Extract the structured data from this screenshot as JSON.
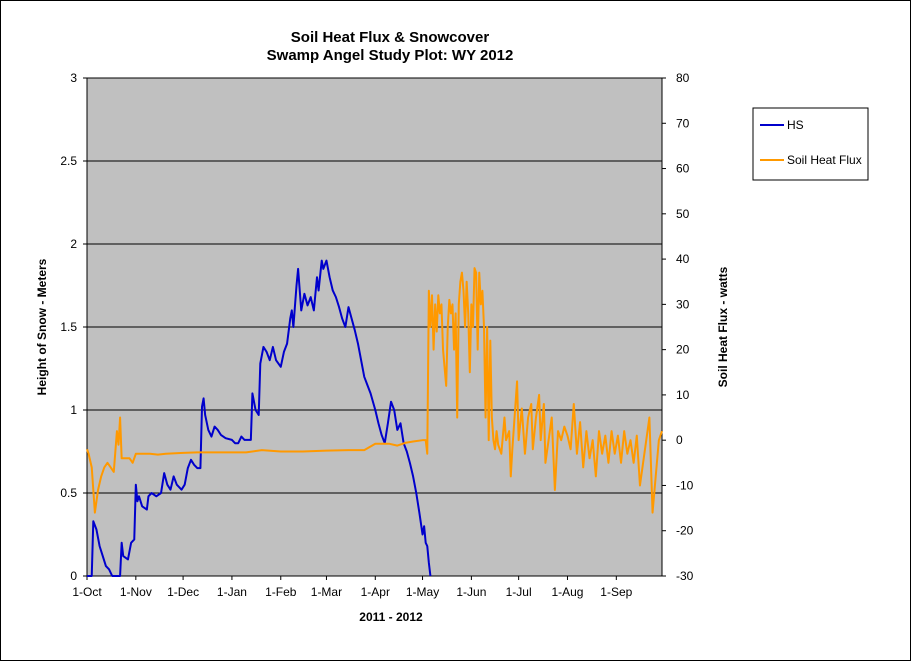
{
  "chart_data": {
    "type": "line",
    "title": [
      "Soil Heat Flux & Snowcover",
      "Swamp Angel Study Plot: WY 2012"
    ],
    "xlabel": "2011 - 2012",
    "ylabel_left": "Height of Snow - Meters",
    "ylabel_right": "Soil Heat Flux - watts",
    "x_tick_labels": [
      "1-Oct",
      "1-Nov",
      "1-Dec",
      "1-Jan",
      "1-Feb",
      "1-Mar",
      "1-Apr",
      "1-May",
      "1-Jun",
      "1-Jul",
      "1-Aug",
      "1-Sep"
    ],
    "x_tick_dates": [
      "2011-10-01",
      "2011-11-01",
      "2011-12-01",
      "2012-01-01",
      "2012-02-01",
      "2012-03-01",
      "2012-04-01",
      "2012-05-01",
      "2012-06-01",
      "2012-07-01",
      "2012-08-01",
      "2012-09-01"
    ],
    "x_range": [
      "2011-10-01",
      "2012-09-30"
    ],
    "ylim_left": [
      0,
      3
    ],
    "yticks_left": [
      "0",
      "0.5",
      "1",
      "1.5",
      "2",
      "2.5",
      "3"
    ],
    "ylim_right": [
      -30,
      80
    ],
    "yticks_right": [
      "-30",
      "-20",
      "-10",
      "0",
      "10",
      "20",
      "30",
      "40",
      "50",
      "60",
      "70",
      "80"
    ],
    "grid": "horizontal",
    "plot_background": "#c0c0c0",
    "legend_position": "right",
    "series": [
      {
        "name": "HS",
        "axis": "left",
        "color": "#0000cc",
        "points": [
          [
            "2011-10-01",
            0.0
          ],
          [
            "2011-10-04",
            0.0
          ],
          [
            "2011-10-05",
            0.33
          ],
          [
            "2011-10-07",
            0.28
          ],
          [
            "2011-10-09",
            0.18
          ],
          [
            "2011-10-11",
            0.12
          ],
          [
            "2011-10-13",
            0.06
          ],
          [
            "2011-10-15",
            0.04
          ],
          [
            "2011-10-17",
            0.0
          ],
          [
            "2011-10-22",
            0.0
          ],
          [
            "2011-10-23",
            0.2
          ],
          [
            "2011-10-24",
            0.12
          ],
          [
            "2011-10-27",
            0.1
          ],
          [
            "2011-10-29",
            0.2
          ],
          [
            "2011-10-31",
            0.22
          ],
          [
            "2011-11-01",
            0.55
          ],
          [
            "2011-11-02",
            0.45
          ],
          [
            "2011-11-03",
            0.48
          ],
          [
            "2011-11-05",
            0.42
          ],
          [
            "2011-11-08",
            0.4
          ],
          [
            "2011-11-09",
            0.48
          ],
          [
            "2011-11-11",
            0.5
          ],
          [
            "2011-11-14",
            0.48
          ],
          [
            "2011-11-17",
            0.5
          ],
          [
            "2011-11-19",
            0.62
          ],
          [
            "2011-11-21",
            0.55
          ],
          [
            "2011-11-23",
            0.52
          ],
          [
            "2011-11-25",
            0.6
          ],
          [
            "2011-11-27",
            0.55
          ],
          [
            "2011-11-30",
            0.52
          ],
          [
            "2011-12-02",
            0.55
          ],
          [
            "2011-12-04",
            0.65
          ],
          [
            "2011-12-06",
            0.7
          ],
          [
            "2011-12-08",
            0.67
          ],
          [
            "2011-12-10",
            0.65
          ],
          [
            "2011-12-12",
            0.65
          ],
          [
            "2011-12-13",
            1.02
          ],
          [
            "2011-12-14",
            1.07
          ],
          [
            "2011-12-15",
            0.97
          ],
          [
            "2011-12-17",
            0.88
          ],
          [
            "2011-12-19",
            0.84
          ],
          [
            "2011-12-21",
            0.9
          ],
          [
            "2011-12-23",
            0.88
          ],
          [
            "2011-12-25",
            0.85
          ],
          [
            "2011-12-28",
            0.83
          ],
          [
            "2012-01-01",
            0.82
          ],
          [
            "2012-01-03",
            0.8
          ],
          [
            "2012-01-05",
            0.8
          ],
          [
            "2012-01-07",
            0.84
          ],
          [
            "2012-01-09",
            0.82
          ],
          [
            "2012-01-11",
            0.82
          ],
          [
            "2012-01-13",
            0.82
          ],
          [
            "2012-01-14",
            1.1
          ],
          [
            "2012-01-16",
            1.0
          ],
          [
            "2012-01-18",
            0.97
          ],
          [
            "2012-01-19",
            1.28
          ],
          [
            "2012-01-21",
            1.38
          ],
          [
            "2012-01-23",
            1.35
          ],
          [
            "2012-01-25",
            1.3
          ],
          [
            "2012-01-27",
            1.38
          ],
          [
            "2012-01-29",
            1.3
          ],
          [
            "2012-02-01",
            1.26
          ],
          [
            "2012-02-03",
            1.35
          ],
          [
            "2012-02-05",
            1.4
          ],
          [
            "2012-02-07",
            1.55
          ],
          [
            "2012-02-08",
            1.6
          ],
          [
            "2012-02-09",
            1.5
          ],
          [
            "2012-02-11",
            1.75
          ],
          [
            "2012-02-12",
            1.85
          ],
          [
            "2012-02-14",
            1.6
          ],
          [
            "2012-02-16",
            1.7
          ],
          [
            "2012-02-18",
            1.63
          ],
          [
            "2012-02-20",
            1.68
          ],
          [
            "2012-02-22",
            1.6
          ],
          [
            "2012-02-24",
            1.8
          ],
          [
            "2012-02-25",
            1.72
          ],
          [
            "2012-02-27",
            1.9
          ],
          [
            "2012-02-28",
            1.85
          ],
          [
            "2012-03-01",
            1.9
          ],
          [
            "2012-03-03",
            1.8
          ],
          [
            "2012-03-05",
            1.72
          ],
          [
            "2012-03-07",
            1.68
          ],
          [
            "2012-03-09",
            1.62
          ],
          [
            "2012-03-11",
            1.55
          ],
          [
            "2012-03-13",
            1.5
          ],
          [
            "2012-03-15",
            1.62
          ],
          [
            "2012-03-17",
            1.55
          ],
          [
            "2012-03-19",
            1.48
          ],
          [
            "2012-03-21",
            1.4
          ],
          [
            "2012-03-23",
            1.3
          ],
          [
            "2012-03-25",
            1.2
          ],
          [
            "2012-03-27",
            1.15
          ],
          [
            "2012-03-29",
            1.1
          ],
          [
            "2012-04-01",
            1.0
          ],
          [
            "2012-04-03",
            0.92
          ],
          [
            "2012-04-05",
            0.85
          ],
          [
            "2012-04-07",
            0.8
          ],
          [
            "2012-04-09",
            0.92
          ],
          [
            "2012-04-11",
            1.05
          ],
          [
            "2012-04-13",
            1.0
          ],
          [
            "2012-04-15",
            0.88
          ],
          [
            "2012-04-17",
            0.92
          ],
          [
            "2012-04-19",
            0.8
          ],
          [
            "2012-04-21",
            0.75
          ],
          [
            "2012-04-23",
            0.68
          ],
          [
            "2012-04-25",
            0.6
          ],
          [
            "2012-04-27",
            0.5
          ],
          [
            "2012-04-29",
            0.38
          ],
          [
            "2012-05-01",
            0.25
          ],
          [
            "2012-05-02",
            0.3
          ],
          [
            "2012-05-03",
            0.2
          ],
          [
            "2012-05-04",
            0.18
          ],
          [
            "2012-05-05",
            0.08
          ],
          [
            "2012-05-06",
            0.0
          ]
        ]
      },
      {
        "name": "Soil Heat Flux",
        "axis": "right",
        "color": "#ff9900",
        "points": [
          [
            "2011-10-01",
            -2
          ],
          [
            "2011-10-02",
            -3
          ],
          [
            "2011-10-04",
            -6
          ],
          [
            "2011-10-06",
            -16
          ],
          [
            "2011-10-08",
            -11
          ],
          [
            "2011-10-10",
            -8
          ],
          [
            "2011-10-12",
            -6
          ],
          [
            "2011-10-14",
            -5
          ],
          [
            "2011-10-16",
            -6
          ],
          [
            "2011-10-18",
            -7
          ],
          [
            "2011-10-20",
            2
          ],
          [
            "2011-10-21",
            -1
          ],
          [
            "2011-10-22",
            5
          ],
          [
            "2011-10-23",
            -4
          ],
          [
            "2011-10-25",
            -4
          ],
          [
            "2011-10-28",
            -4
          ],
          [
            "2011-10-30",
            -5
          ],
          [
            "2011-11-01",
            -3
          ],
          [
            "2011-11-05",
            -3
          ],
          [
            "2011-11-10",
            -3
          ],
          [
            "2011-11-15",
            -3.2
          ],
          [
            "2011-11-20",
            -3
          ],
          [
            "2011-12-01",
            -2.8
          ],
          [
            "2011-12-10",
            -2.7
          ],
          [
            "2011-12-20",
            -2.7
          ],
          [
            "2012-01-01",
            -2.7
          ],
          [
            "2012-01-10",
            -2.7
          ],
          [
            "2012-01-20",
            -2.2
          ],
          [
            "2012-02-01",
            -2.5
          ],
          [
            "2012-02-15",
            -2.5
          ],
          [
            "2012-03-01",
            -2.3
          ],
          [
            "2012-03-15",
            -2.2
          ],
          [
            "2012-03-25",
            -2.2
          ],
          [
            "2012-04-01",
            -0.8
          ],
          [
            "2012-04-10",
            -0.8
          ],
          [
            "2012-04-15",
            -1.2
          ],
          [
            "2012-04-20",
            -0.6
          ],
          [
            "2012-04-25",
            -0.3
          ],
          [
            "2012-05-01",
            0
          ],
          [
            "2012-05-03",
            0
          ],
          [
            "2012-05-04",
            -3
          ],
          [
            "2012-05-05",
            33
          ],
          [
            "2012-05-06",
            25
          ],
          [
            "2012-05-07",
            32
          ],
          [
            "2012-05-08",
            20
          ],
          [
            "2012-05-09",
            30
          ],
          [
            "2012-05-10",
            24
          ],
          [
            "2012-05-11",
            32
          ],
          [
            "2012-05-12",
            28
          ],
          [
            "2012-05-13",
            30
          ],
          [
            "2012-05-14",
            20
          ],
          [
            "2012-05-16",
            12
          ],
          [
            "2012-05-17",
            25
          ],
          [
            "2012-05-18",
            31
          ],
          [
            "2012-05-19",
            28
          ],
          [
            "2012-05-20",
            30
          ],
          [
            "2012-05-21",
            20
          ],
          [
            "2012-05-22",
            28
          ],
          [
            "2012-05-23",
            5
          ],
          [
            "2012-05-24",
            30
          ],
          [
            "2012-05-25",
            35
          ],
          [
            "2012-05-26",
            37
          ],
          [
            "2012-05-27",
            33
          ],
          [
            "2012-05-28",
            25
          ],
          [
            "2012-05-29",
            35
          ],
          [
            "2012-05-30",
            28
          ],
          [
            "2012-05-31",
            15
          ],
          [
            "2012-06-01",
            30
          ],
          [
            "2012-06-02",
            25
          ],
          [
            "2012-06-03",
            38
          ],
          [
            "2012-06-04",
            37
          ],
          [
            "2012-06-05",
            20
          ],
          [
            "2012-06-06",
            37
          ],
          [
            "2012-06-07",
            30
          ],
          [
            "2012-06-08",
            33
          ],
          [
            "2012-06-09",
            25
          ],
          [
            "2012-06-10",
            5
          ],
          [
            "2012-06-11",
            25
          ],
          [
            "2012-06-12",
            0
          ],
          [
            "2012-06-13",
            22
          ],
          [
            "2012-06-14",
            5
          ],
          [
            "2012-06-15",
            0
          ],
          [
            "2012-06-16",
            -2
          ],
          [
            "2012-06-17",
            2
          ],
          [
            "2012-06-18",
            -1
          ],
          [
            "2012-06-20",
            -3
          ],
          [
            "2012-06-22",
            5
          ],
          [
            "2012-06-23",
            0
          ],
          [
            "2012-06-25",
            2
          ],
          [
            "2012-06-26",
            -8
          ],
          [
            "2012-06-27",
            -2
          ],
          [
            "2012-06-29",
            8
          ],
          [
            "2012-06-30",
            13
          ],
          [
            "2012-07-01",
            0
          ],
          [
            "2012-07-03",
            7
          ],
          [
            "2012-07-05",
            -3
          ],
          [
            "2012-07-07",
            5
          ],
          [
            "2012-07-09",
            8
          ],
          [
            "2012-07-10",
            -2
          ],
          [
            "2012-07-12",
            5
          ],
          [
            "2012-07-14",
            10
          ],
          [
            "2012-07-15",
            0
          ],
          [
            "2012-07-17",
            8
          ],
          [
            "2012-07-18",
            -5
          ],
          [
            "2012-07-20",
            0
          ],
          [
            "2012-07-22",
            5
          ],
          [
            "2012-07-24",
            -11
          ],
          [
            "2012-07-26",
            2
          ],
          [
            "2012-07-28",
            0
          ],
          [
            "2012-07-30",
            3
          ],
          [
            "2012-08-01",
            1
          ],
          [
            "2012-08-03",
            -2
          ],
          [
            "2012-08-05",
            8
          ],
          [
            "2012-08-07",
            -3
          ],
          [
            "2012-08-09",
            4
          ],
          [
            "2012-08-11",
            -6
          ],
          [
            "2012-08-13",
            2
          ],
          [
            "2012-08-15",
            -4
          ],
          [
            "2012-08-17",
            0
          ],
          [
            "2012-08-19",
            -8
          ],
          [
            "2012-08-21",
            2
          ],
          [
            "2012-08-23",
            -3
          ],
          [
            "2012-08-25",
            1
          ],
          [
            "2012-08-27",
            -5
          ],
          [
            "2012-08-29",
            2
          ],
          [
            "2012-08-31",
            -3
          ],
          [
            "2012-09-02",
            1
          ],
          [
            "2012-09-04",
            -5
          ],
          [
            "2012-09-06",
            2
          ],
          [
            "2012-09-08",
            -3
          ],
          [
            "2012-09-10",
            0
          ],
          [
            "2012-09-12",
            -5
          ],
          [
            "2012-09-14",
            1
          ],
          [
            "2012-09-16",
            -10
          ],
          [
            "2012-09-18",
            -5
          ],
          [
            "2012-09-20",
            0
          ],
          [
            "2012-09-22",
            5
          ],
          [
            "2012-09-24",
            -16
          ],
          [
            "2012-09-26",
            -8
          ],
          [
            "2012-09-28",
            0
          ],
          [
            "2012-09-30",
            2
          ]
        ]
      }
    ]
  }
}
